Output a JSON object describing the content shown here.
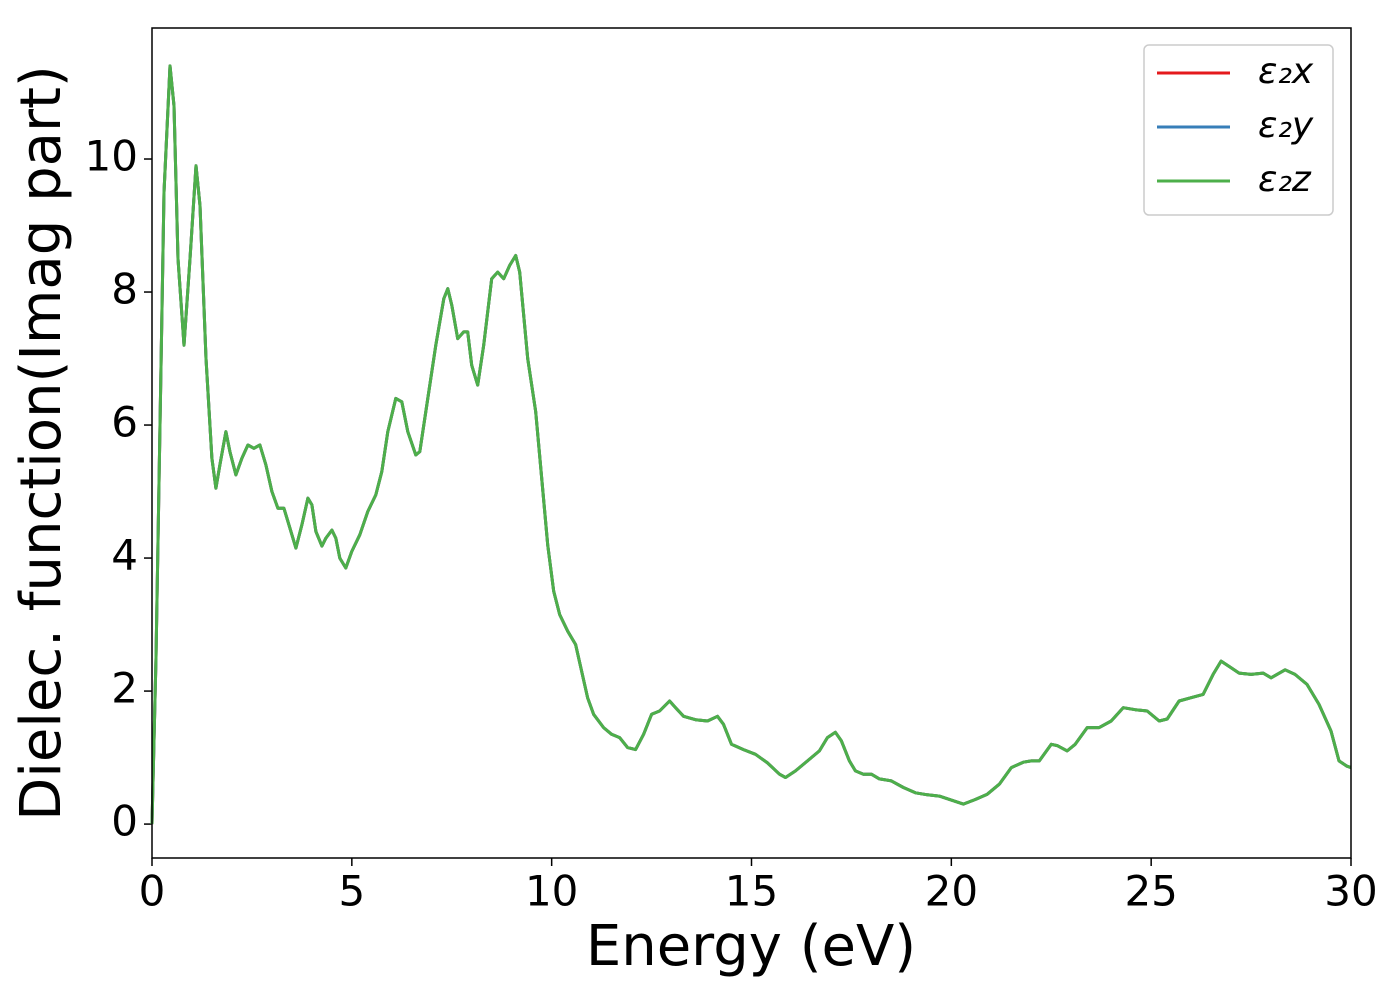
{
  "chart_data": {
    "type": "line",
    "xlabel": "Energy (eV)",
    "ylabel": "Dielec. function(Imag part)",
    "x": [
      0,
      0.1,
      0.2,
      0.3,
      0.45,
      0.55,
      0.65,
      0.8,
      0.95,
      1.1,
      1.2,
      1.35,
      1.5,
      1.6,
      1.7,
      1.85,
      1.95,
      2.1,
      2.25,
      2.4,
      2.55,
      2.7,
      2.85,
      3.0,
      3.15,
      3.3,
      3.45,
      3.6,
      3.75,
      3.9,
      4.0,
      4.1,
      4.25,
      4.35,
      4.5,
      4.6,
      4.7,
      4.85,
      5.0,
      5.2,
      5.4,
      5.6,
      5.75,
      5.9,
      6.1,
      6.25,
      6.4,
      6.6,
      6.7,
      6.9,
      7.1,
      7.3,
      7.4,
      7.5,
      7.65,
      7.8,
      7.9,
      8.0,
      8.15,
      8.3,
      8.5,
      8.65,
      8.8,
      8.95,
      9.1,
      9.2,
      9.4,
      9.6,
      9.75,
      9.9,
      10.05,
      10.2,
      10.4,
      10.6,
      10.75,
      10.9,
      11.05,
      11.3,
      11.5,
      11.7,
      11.9,
      12.1,
      12.3,
      12.5,
      12.7,
      12.95,
      13.1,
      13.3,
      13.6,
      13.9,
      14.15,
      14.3,
      14.5,
      14.8,
      15.1,
      15.4,
      15.7,
      15.85,
      16.1,
      16.4,
      16.7,
      16.9,
      17.1,
      17.25,
      17.45,
      17.6,
      17.8,
      18.0,
      18.2,
      18.5,
      18.8,
      19.1,
      19.4,
      19.7,
      20.0,
      20.3,
      20.6,
      20.9,
      21.2,
      21.5,
      21.8,
      22.0,
      22.2,
      22.5,
      22.65,
      22.9,
      23.1,
      23.4,
      23.7,
      24.0,
      24.3,
      24.6,
      24.9,
      25.2,
      25.4,
      25.7,
      26.0,
      26.3,
      26.55,
      26.75,
      27.0,
      27.2,
      27.5,
      27.8,
      28.0,
      28.35,
      28.6,
      28.9,
      29.2,
      29.5,
      29.7,
      29.9,
      30.0
    ],
    "series": [
      {
        "name": "ε₂x",
        "color": "#e41a1c",
        "values": [
          0,
          2.5,
          6,
          9.5,
          11.4,
          10.8,
          8.5,
          7.2,
          8.5,
          9.9,
          9.3,
          7,
          5.5,
          5.05,
          5.4,
          5.9,
          5.6,
          5.25,
          5.5,
          5.7,
          5.65,
          5.7,
          5.4,
          5.0,
          4.75,
          4.75,
          4.45,
          4.15,
          4.5,
          4.9,
          4.8,
          4.4,
          4.18,
          4.3,
          4.42,
          4.3,
          4.0,
          3.85,
          4.1,
          4.35,
          4.7,
          4.95,
          5.3,
          5.9,
          6.4,
          6.35,
          5.9,
          5.55,
          5.6,
          6.4,
          7.2,
          7.9,
          8.05,
          7.8,
          7.3,
          7.4,
          7.4,
          6.9,
          6.6,
          7.2,
          8.2,
          8.3,
          8.2,
          8.4,
          8.55,
          8.3,
          7.0,
          6.2,
          5.2,
          4.2,
          3.5,
          3.15,
          2.9,
          2.7,
          2.3,
          1.9,
          1.65,
          1.45,
          1.35,
          1.3,
          1.15,
          1.12,
          1.35,
          1.65,
          1.7,
          1.85,
          1.75,
          1.62,
          1.57,
          1.55,
          1.62,
          1.5,
          1.2,
          1.12,
          1.05,
          0.92,
          0.75,
          0.7,
          0.8,
          0.95,
          1.1,
          1.3,
          1.38,
          1.25,
          0.95,
          0.8,
          0.75,
          0.75,
          0.68,
          0.65,
          0.55,
          0.47,
          0.44,
          0.42,
          0.36,
          0.3,
          0.37,
          0.45,
          0.6,
          0.85,
          0.93,
          0.95,
          0.95,
          1.2,
          1.18,
          1.1,
          1.2,
          1.45,
          1.45,
          1.55,
          1.75,
          1.72,
          1.7,
          1.55,
          1.58,
          1.85,
          1.9,
          1.95,
          2.25,
          2.45,
          2.35,
          2.27,
          2.25,
          2.27,
          2.2,
          2.32,
          2.25,
          2.1,
          1.8,
          1.4,
          0.95,
          0.87,
          0.85
        ]
      },
      {
        "name": "ε₂y",
        "color": "#377eb8",
        "values": [
          0,
          2.5,
          6,
          9.5,
          11.4,
          10.8,
          8.5,
          7.2,
          8.5,
          9.9,
          9.3,
          7,
          5.5,
          5.05,
          5.4,
          5.9,
          5.6,
          5.25,
          5.5,
          5.7,
          5.65,
          5.7,
          5.4,
          5.0,
          4.75,
          4.75,
          4.45,
          4.15,
          4.5,
          4.9,
          4.8,
          4.4,
          4.18,
          4.3,
          4.42,
          4.3,
          4.0,
          3.85,
          4.1,
          4.35,
          4.7,
          4.95,
          5.3,
          5.9,
          6.4,
          6.35,
          5.9,
          5.55,
          5.6,
          6.4,
          7.2,
          7.9,
          8.05,
          7.8,
          7.3,
          7.4,
          7.4,
          6.9,
          6.6,
          7.2,
          8.2,
          8.3,
          8.2,
          8.4,
          8.55,
          8.3,
          7.0,
          6.2,
          5.2,
          4.2,
          3.5,
          3.15,
          2.9,
          2.7,
          2.3,
          1.9,
          1.65,
          1.45,
          1.35,
          1.3,
          1.15,
          1.12,
          1.35,
          1.65,
          1.7,
          1.85,
          1.75,
          1.62,
          1.57,
          1.55,
          1.62,
          1.5,
          1.2,
          1.12,
          1.05,
          0.92,
          0.75,
          0.7,
          0.8,
          0.95,
          1.1,
          1.3,
          1.38,
          1.25,
          0.95,
          0.8,
          0.75,
          0.75,
          0.68,
          0.65,
          0.55,
          0.47,
          0.44,
          0.42,
          0.36,
          0.3,
          0.37,
          0.45,
          0.6,
          0.85,
          0.93,
          0.95,
          0.95,
          1.2,
          1.18,
          1.1,
          1.2,
          1.45,
          1.45,
          1.55,
          1.75,
          1.72,
          1.7,
          1.55,
          1.58,
          1.85,
          1.9,
          1.95,
          2.25,
          2.45,
          2.35,
          2.27,
          2.25,
          2.27,
          2.2,
          2.32,
          2.25,
          2.1,
          1.8,
          1.4,
          0.95,
          0.87,
          0.85
        ]
      },
      {
        "name": "ε₂z",
        "color": "#4daf4a",
        "values": [
          0,
          2.5,
          6,
          9.5,
          11.4,
          10.8,
          8.5,
          7.2,
          8.5,
          9.9,
          9.3,
          7,
          5.5,
          5.05,
          5.4,
          5.9,
          5.6,
          5.25,
          5.5,
          5.7,
          5.65,
          5.7,
          5.4,
          5.0,
          4.75,
          4.75,
          4.45,
          4.15,
          4.5,
          4.9,
          4.8,
          4.4,
          4.18,
          4.3,
          4.42,
          4.3,
          4.0,
          3.85,
          4.1,
          4.35,
          4.7,
          4.95,
          5.3,
          5.9,
          6.4,
          6.35,
          5.9,
          5.55,
          5.6,
          6.4,
          7.2,
          7.9,
          8.05,
          7.8,
          7.3,
          7.4,
          7.4,
          6.9,
          6.6,
          7.2,
          8.2,
          8.3,
          8.2,
          8.4,
          8.55,
          8.3,
          7.0,
          6.2,
          5.2,
          4.2,
          3.5,
          3.15,
          2.9,
          2.7,
          2.3,
          1.9,
          1.65,
          1.45,
          1.35,
          1.3,
          1.15,
          1.12,
          1.35,
          1.65,
          1.7,
          1.85,
          1.75,
          1.62,
          1.57,
          1.55,
          1.62,
          1.5,
          1.2,
          1.12,
          1.05,
          0.92,
          0.75,
          0.7,
          0.8,
          0.95,
          1.1,
          1.3,
          1.38,
          1.25,
          0.95,
          0.8,
          0.75,
          0.75,
          0.68,
          0.65,
          0.55,
          0.47,
          0.44,
          0.42,
          0.36,
          0.3,
          0.37,
          0.45,
          0.6,
          0.85,
          0.93,
          0.95,
          0.95,
          1.2,
          1.18,
          1.1,
          1.2,
          1.45,
          1.45,
          1.55,
          1.75,
          1.72,
          1.7,
          1.55,
          1.58,
          1.85,
          1.9,
          1.95,
          2.25,
          2.45,
          2.35,
          2.27,
          2.25,
          2.27,
          2.2,
          2.32,
          2.25,
          2.1,
          1.8,
          1.4,
          0.95,
          0.87,
          0.85
        ]
      }
    ],
    "xlim": [
      0,
      30
    ],
    "xticks": [
      0,
      5,
      10,
      15,
      20,
      25,
      30
    ],
    "ylim": [
      -0.51,
      11.97
    ],
    "yticks": [
      0,
      2,
      4,
      6,
      8,
      10
    ],
    "grid": false,
    "legend": "upper right"
  }
}
